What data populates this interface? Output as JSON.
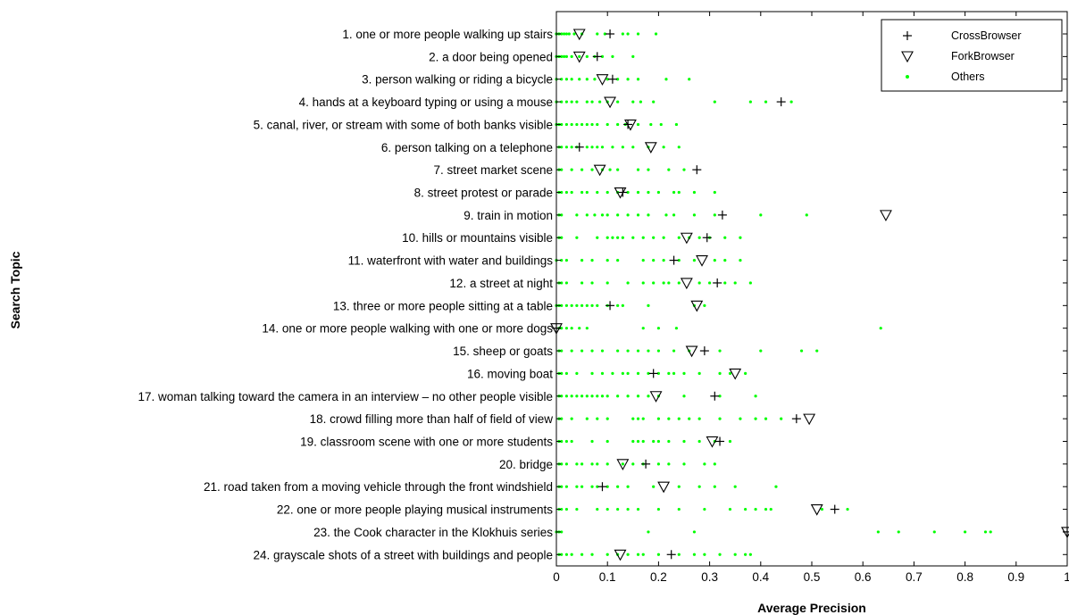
{
  "chart_data": {
    "type": "scatter",
    "xlabel": "Average Precision",
    "ylabel": "Search Topic",
    "xlim": [
      0,
      1
    ],
    "xticks": [
      "0",
      "0.1",
      "0.2",
      "0.3",
      "0.4",
      "0.5",
      "0.6",
      "0.7",
      "0.8",
      "0.9",
      "1"
    ],
    "grid": false,
    "legend": {
      "position": "top-right",
      "entries": [
        {
          "name": "CrossBrowser",
          "marker": "plus",
          "color": "#000000"
        },
        {
          "name": "ForkBrowser",
          "marker": "triangle-down",
          "color": "#000000"
        },
        {
          "name": "Others",
          "marker": "dot",
          "color": "#00ff00"
        }
      ]
    },
    "categories": [
      "1. one or more people walking up stairs",
      "2. a door being opened",
      "3. person walking or riding a bicycle",
      "4. hands at a keyboard typing or using a mouse",
      "5. canal, river, or stream with some of both banks visible",
      "6. person talking on a telephone",
      "7. street market scene",
      "8. street protest or parade",
      "9. train in motion",
      "10. hills or mountains visible",
      "11. waterfront with water and buildings",
      "12. a street at night",
      "13. three or more people sitting at a table",
      "14. one or more people walking with one or more dogs",
      "15. sheep or goats",
      "16. moving boat",
      "17. woman talking toward the camera in an interview – no other people visible",
      "18. crowd filling more than half of field of view",
      "19. classroom scene with one or more students",
      "20. bridge",
      "21. road taken from a moving vehicle through the front windshield",
      "22. one or more people playing musical instruments",
      "23. the Cook character in the Klokhuis series",
      "24. grayscale shots of a street with buildings and people"
    ],
    "series": [
      {
        "name": "CrossBrowser",
        "values": [
          0.105,
          0.08,
          0.11,
          0.44,
          0.14,
          0.045,
          0.275,
          0.13,
          0.325,
          0.295,
          0.23,
          0.315,
          0.105,
          0.0,
          0.29,
          0.19,
          0.31,
          0.47,
          0.32,
          0.175,
          0.09,
          0.545,
          1.0,
          0.225
        ]
      },
      {
        "name": "ForkBrowser",
        "values": [
          0.045,
          0.045,
          0.09,
          0.105,
          0.145,
          0.185,
          0.085,
          0.125,
          0.645,
          0.255,
          0.285,
          0.255,
          0.275,
          0.0,
          0.265,
          0.35,
          0.195,
          0.495,
          0.305,
          0.13,
          0.21,
          0.51,
          1.0,
          0.125
        ]
      },
      {
        "name": "Others",
        "points": [
          [
            0.0,
            0.0,
            0.005,
            0.01,
            0.015,
            0.02,
            0.025,
            0.035,
            0.05,
            0.08,
            0.095,
            0.13,
            0.14,
            0.16,
            0.195
          ],
          [
            0.0,
            0.005,
            0.01,
            0.015,
            0.02,
            0.03,
            0.045,
            0.06,
            0.075,
            0.09,
            0.11,
            0.15
          ],
          [
            0.0,
            0.01,
            0.02,
            0.03,
            0.045,
            0.06,
            0.075,
            0.1,
            0.12,
            0.14,
            0.16,
            0.215,
            0.26
          ],
          [
            0.0,
            0.01,
            0.02,
            0.03,
            0.04,
            0.06,
            0.07,
            0.085,
            0.1,
            0.12,
            0.15,
            0.165,
            0.19,
            0.31,
            0.38,
            0.41,
            0.46
          ],
          [
            0.0,
            0.005,
            0.01,
            0.02,
            0.03,
            0.04,
            0.05,
            0.06,
            0.07,
            0.08,
            0.1,
            0.12,
            0.135,
            0.16,
            0.185,
            0.205,
            0.235
          ],
          [
            0.005,
            0.01,
            0.02,
            0.03,
            0.04,
            0.06,
            0.07,
            0.08,
            0.09,
            0.11,
            0.13,
            0.15,
            0.18,
            0.21,
            0.24
          ],
          [
            0.005,
            0.01,
            0.03,
            0.05,
            0.07,
            0.09,
            0.105,
            0.12,
            0.16,
            0.18,
            0.22,
            0.25
          ],
          [
            0.005,
            0.01,
            0.02,
            0.03,
            0.05,
            0.06,
            0.08,
            0.1,
            0.12,
            0.14,
            0.16,
            0.18,
            0.2,
            0.23,
            0.24,
            0.27,
            0.31
          ],
          [
            0.005,
            0.01,
            0.04,
            0.06,
            0.075,
            0.09,
            0.1,
            0.12,
            0.14,
            0.16,
            0.18,
            0.215,
            0.23,
            0.27,
            0.31,
            0.4,
            0.49
          ],
          [
            0.005,
            0.01,
            0.04,
            0.08,
            0.1,
            0.11,
            0.12,
            0.13,
            0.15,
            0.17,
            0.19,
            0.21,
            0.24,
            0.26,
            0.28,
            0.3,
            0.33,
            0.36
          ],
          [
            0.0,
            0.01,
            0.02,
            0.05,
            0.07,
            0.1,
            0.12,
            0.17,
            0.19,
            0.21,
            0.24,
            0.27,
            0.31,
            0.33,
            0.36
          ],
          [
            0.005,
            0.01,
            0.02,
            0.05,
            0.07,
            0.1,
            0.14,
            0.17,
            0.19,
            0.21,
            0.22,
            0.24,
            0.28,
            0.3,
            0.33,
            0.35,
            0.38
          ],
          [
            0.0,
            0.005,
            0.01,
            0.02,
            0.03,
            0.04,
            0.05,
            0.06,
            0.07,
            0.08,
            0.1,
            0.12,
            0.13,
            0.18,
            0.27,
            0.29
          ],
          [
            0.005,
            0.01,
            0.02,
            0.03,
            0.045,
            0.06,
            0.17,
            0.2,
            0.235,
            0.635
          ],
          [
            0.005,
            0.01,
            0.03,
            0.05,
            0.07,
            0.09,
            0.12,
            0.14,
            0.16,
            0.18,
            0.2,
            0.23,
            0.26,
            0.32,
            0.4,
            0.48,
            0.51
          ],
          [
            0.005,
            0.01,
            0.02,
            0.04,
            0.07,
            0.09,
            0.11,
            0.13,
            0.14,
            0.16,
            0.18,
            0.2,
            0.22,
            0.23,
            0.25,
            0.28,
            0.32,
            0.34,
            0.37
          ],
          [
            0.005,
            0.01,
            0.02,
            0.03,
            0.04,
            0.05,
            0.06,
            0.07,
            0.08,
            0.09,
            0.1,
            0.12,
            0.14,
            0.16,
            0.18,
            0.2,
            0.25,
            0.32,
            0.39
          ],
          [
            0.005,
            0.01,
            0.03,
            0.06,
            0.08,
            0.1,
            0.15,
            0.16,
            0.17,
            0.2,
            0.22,
            0.24,
            0.26,
            0.28,
            0.32,
            0.36,
            0.39,
            0.41,
            0.44
          ],
          [
            0.005,
            0.01,
            0.02,
            0.03,
            0.07,
            0.1,
            0.15,
            0.16,
            0.17,
            0.19,
            0.2,
            0.22,
            0.25,
            0.28,
            0.31,
            0.34
          ],
          [
            0.005,
            0.01,
            0.02,
            0.04,
            0.05,
            0.07,
            0.08,
            0.1,
            0.13,
            0.15,
            0.17,
            0.2,
            0.22,
            0.25,
            0.29,
            0.31
          ],
          [
            0.005,
            0.01,
            0.02,
            0.04,
            0.05,
            0.07,
            0.08,
            0.1,
            0.12,
            0.14,
            0.19,
            0.24,
            0.28,
            0.31,
            0.35,
            0.43
          ],
          [
            0.005,
            0.01,
            0.02,
            0.04,
            0.08,
            0.1,
            0.12,
            0.14,
            0.16,
            0.2,
            0.24,
            0.29,
            0.34,
            0.37,
            0.39,
            0.41,
            0.42,
            0.52,
            0.57
          ],
          [
            0.0,
            0.005,
            0.01,
            0.18,
            0.27,
            0.63,
            0.67,
            0.74,
            0.8,
            0.84,
            0.85
          ],
          [
            0.005,
            0.01,
            0.02,
            0.03,
            0.05,
            0.07,
            0.1,
            0.12,
            0.14,
            0.16,
            0.17,
            0.2,
            0.24,
            0.27,
            0.29,
            0.32,
            0.35,
            0.37,
            0.38
          ]
        ]
      }
    ]
  }
}
